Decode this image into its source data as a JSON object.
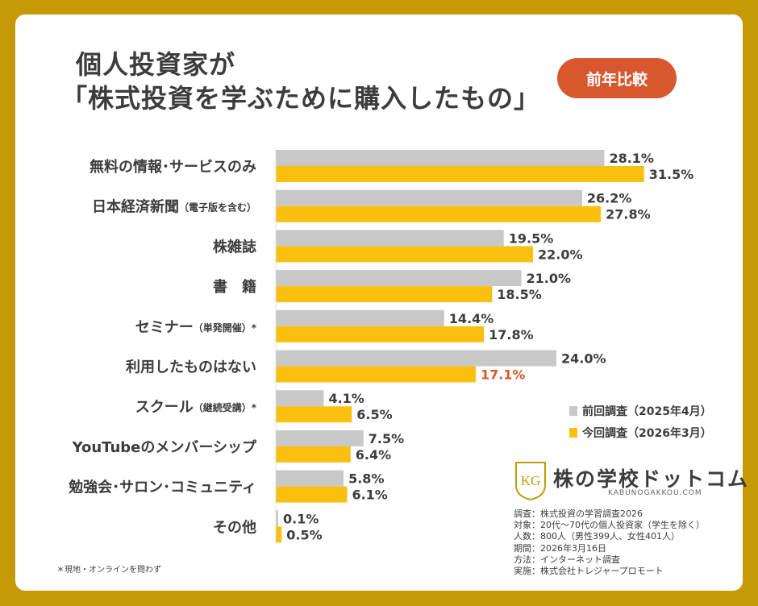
{
  "title": {
    "line1": "個人投資家が",
    "line2": "「株式投資を学ぶために購入したもの」"
  },
  "badge": "前年比較",
  "legend": {
    "prev": "前回調査（2025年4月）",
    "curr": "今回調査（2026年3月）"
  },
  "colors": {
    "background": "#c59a06",
    "prev_bar": "#c8c8c8",
    "curr_bar": "#fbbf0f",
    "highlight": "#d9572f",
    "text": "#3c3c3c"
  },
  "chart_data": {
    "type": "bar",
    "orientation": "horizontal",
    "categories": [
      {
        "main": "無料の情報･サービスのみ",
        "sub": ""
      },
      {
        "main": "日本経済新聞",
        "sub": "（電子版を含む）"
      },
      {
        "main": "株雑誌",
        "sub": ""
      },
      {
        "main": "書　籍",
        "sub": ""
      },
      {
        "main": "セミナー",
        "sub": "（単発開催）*"
      },
      {
        "main": "利用したものはない",
        "sub": ""
      },
      {
        "main": "スクール",
        "sub": "（継続受講）*"
      },
      {
        "main": "YouTubeのメンバーシップ",
        "sub": ""
      },
      {
        "main": "勉強会･サロン･コミュニティ",
        "sub": ""
      },
      {
        "main": "その他",
        "sub": ""
      }
    ],
    "series": [
      {
        "name": "前回調査（2025年4月）",
        "values": [
          28.1,
          26.2,
          19.5,
          21.0,
          14.4,
          24.0,
          4.1,
          7.5,
          5.8,
          0.1
        ]
      },
      {
        "name": "今回調査（2026年3月）",
        "values": [
          31.5,
          27.8,
          22.0,
          18.5,
          17.8,
          17.1,
          6.5,
          6.4,
          6.1,
          0.5
        ]
      }
    ],
    "value_suffix": "%",
    "highlight": {
      "series": 1,
      "index": 5
    }
  },
  "logo": {
    "name": "株の学校ドットコム",
    "url": "KABUNOGAKKOU.COM",
    "mark": "KG"
  },
  "meta": [
    "調査：株式投資の学習調査2026",
    "対象：20代〜70代の個人投資家（学生を除く）",
    "人数：800人（男性399人、女性401人）",
    "期間：2026年3月16日",
    "方法：インターネット調査",
    "実施：株式会社トレジャープロモート"
  ],
  "footnote": "＊現地・オンラインを問わず"
}
